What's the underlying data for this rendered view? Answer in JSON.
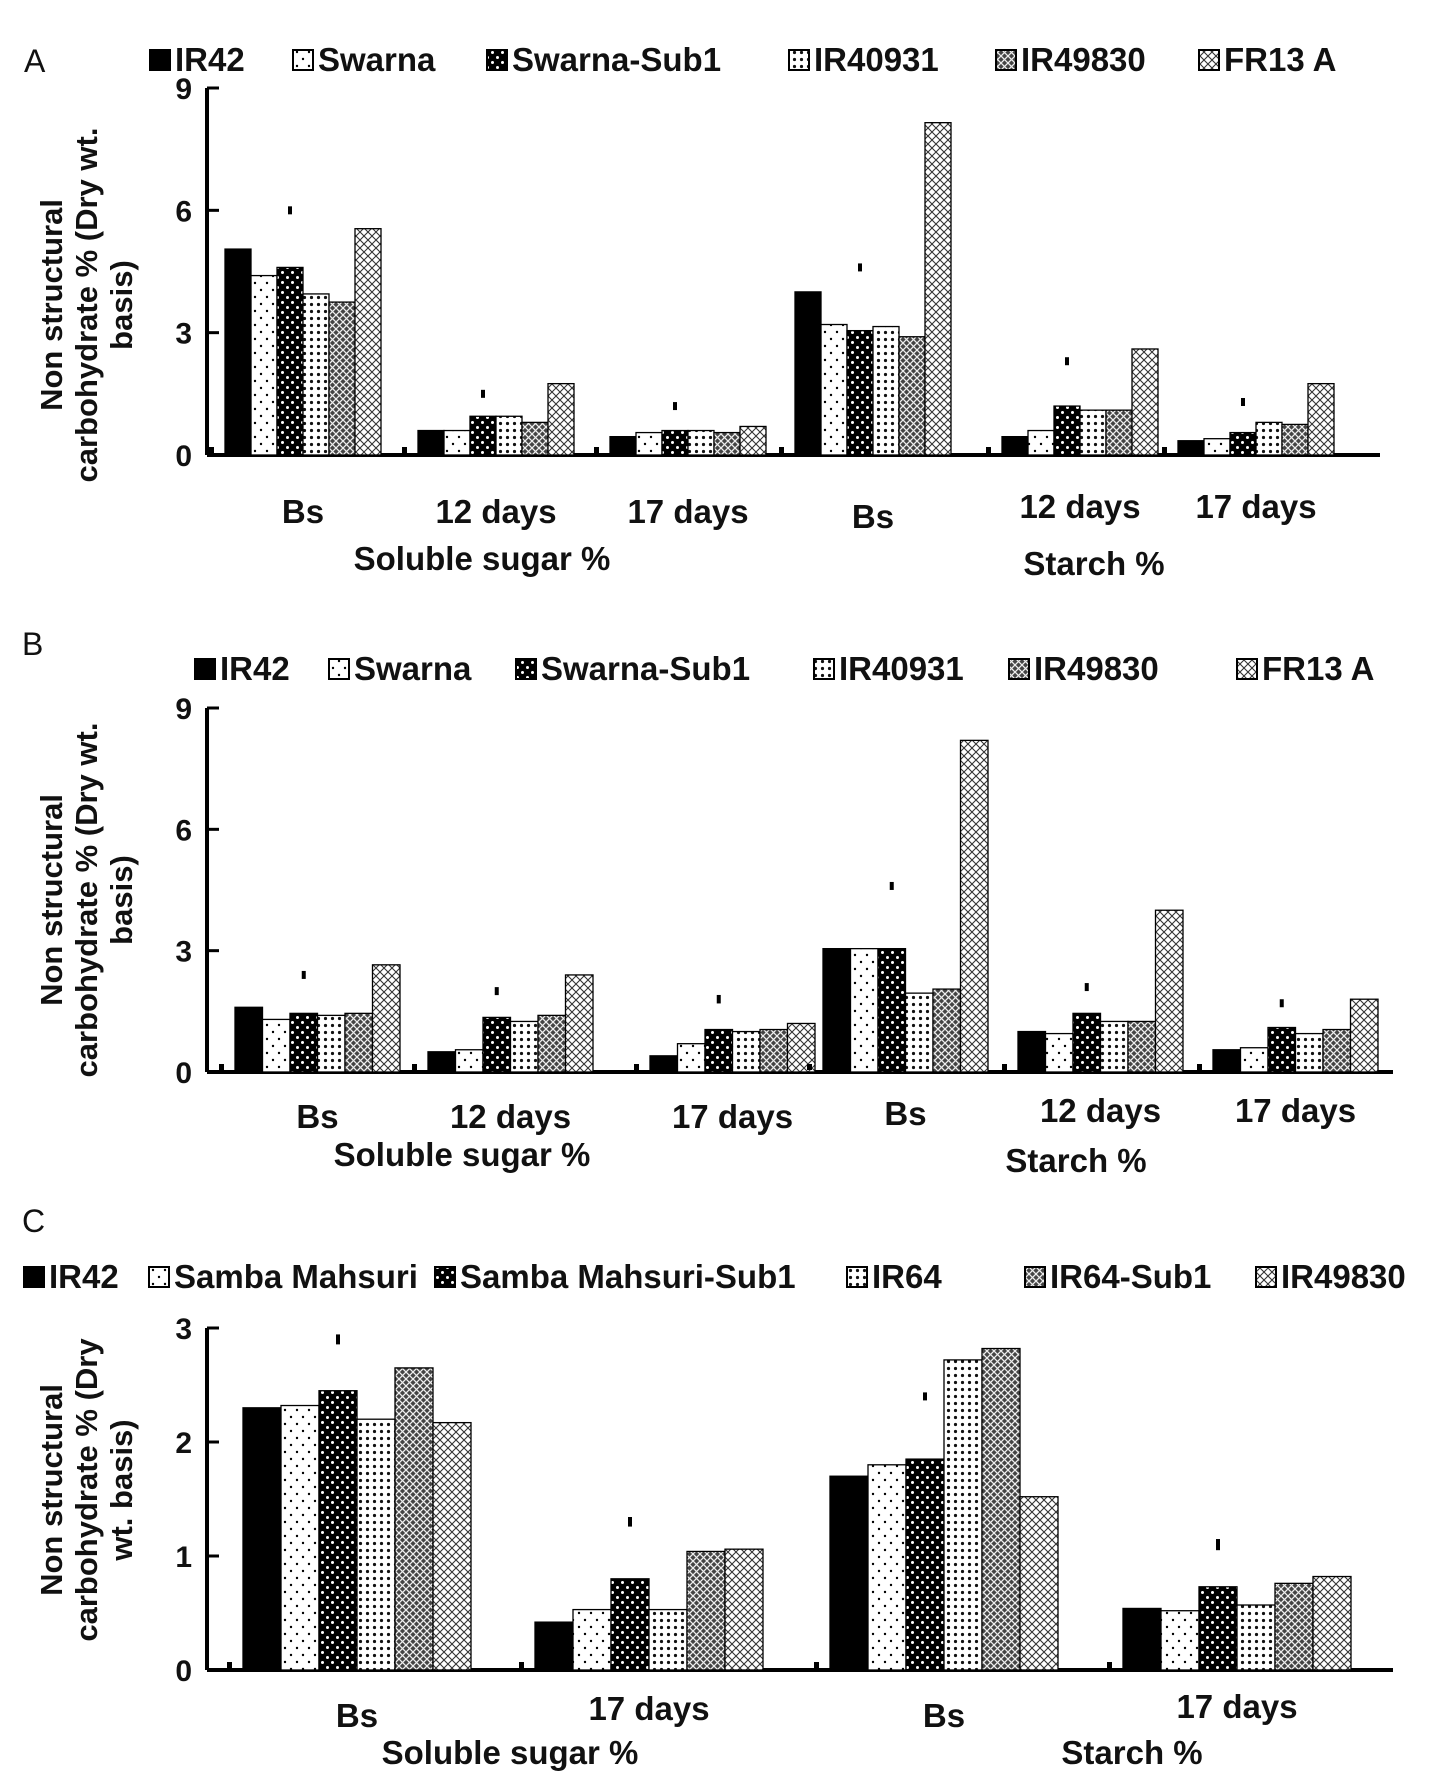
{
  "chart_data": [
    {
      "panel": "A",
      "type": "bar",
      "ylabel": [
        "Non structural",
        "carbohydrate % (Dry wt.",
        "basis)"
      ],
      "ylim": [
        0,
        9
      ],
      "yticks": [
        "0",
        "3",
        "6",
        "9"
      ],
      "legend": [
        "IR42",
        "Swarna",
        "Swarna-Sub1",
        "IR40931",
        "IR49830",
        "FR13 A"
      ],
      "sections": [
        {
          "label": "Soluble sugar %",
          "groups": [
            {
              "label": "Bs",
              "values": [
                5.05,
                4.4,
                4.6,
                3.95,
                3.75,
                5.55
              ],
              "lsd": 6.0
            },
            {
              "label": "12 days",
              "values": [
                0.6,
                0.6,
                0.95,
                0.95,
                0.8,
                1.75
              ],
              "lsd": 1.5
            },
            {
              "label": "17 days",
              "values": [
                0.45,
                0.55,
                0.6,
                0.6,
                0.55,
                0.7
              ],
              "lsd": 1.2
            }
          ]
        },
        {
          "label": "Starch %",
          "groups": [
            {
              "label": "Bs",
              "values": [
                4.0,
                3.2,
                3.05,
                3.15,
                2.9,
                8.15
              ],
              "lsd": 4.6
            },
            {
              "label": "12 days",
              "values": [
                0.45,
                0.6,
                1.2,
                1.1,
                1.1,
                2.6
              ],
              "lsd": 2.3
            },
            {
              "label": "17 days",
              "values": [
                0.35,
                0.4,
                0.55,
                0.8,
                0.75,
                1.75
              ],
              "lsd": 1.3
            }
          ]
        }
      ]
    },
    {
      "panel": "B",
      "type": "bar",
      "ylabel": [
        "Non structural",
        "carbohydrate % (Dry wt.",
        "basis)"
      ],
      "ylim": [
        0,
        9
      ],
      "yticks": [
        "0",
        "3",
        "6",
        "9"
      ],
      "legend": [
        "IR42",
        "Swarna",
        "Swarna-Sub1",
        "IR40931",
        "IR49830",
        "FR13 A"
      ],
      "sections": [
        {
          "label": "Soluble sugar %",
          "groups": [
            {
              "label": "Bs",
              "values": [
                1.6,
                1.3,
                1.45,
                1.4,
                1.45,
                2.65
              ],
              "lsd": 2.4
            },
            {
              "label": "12 days",
              "values": [
                0.5,
                0.55,
                1.35,
                1.25,
                1.4,
                2.4
              ],
              "lsd": 2.0
            },
            {
              "label": "17 days",
              "values": [
                0.4,
                0.7,
                1.05,
                1.0,
                1.05,
                1.2
              ],
              "lsd": 1.8
            }
          ]
        },
        {
          "label": "Starch %",
          "groups": [
            {
              "label": "Bs",
              "values": [
                3.05,
                3.05,
                3.05,
                1.95,
                2.05,
                8.2
              ],
              "lsd": 4.6
            },
            {
              "label": "12 days",
              "values": [
                1.0,
                0.95,
                1.45,
                1.25,
                1.25,
                4.0
              ],
              "lsd": 2.1
            },
            {
              "label": "17 days",
              "values": [
                0.55,
                0.6,
                1.1,
                0.95,
                1.05,
                1.8
              ],
              "lsd": 1.7
            }
          ]
        }
      ]
    },
    {
      "panel": "C",
      "type": "bar",
      "ylabel": [
        "Non structural",
        "carbohydrate % (Dry",
        "wt. basis)"
      ],
      "ylim": [
        0,
        3
      ],
      "yticks": [
        "0",
        "1",
        "2",
        "3"
      ],
      "legend": [
        "IR42",
        "Samba Mahsuri",
        "Samba Mahsuri-Sub1",
        "IR64",
        "IR64-Sub1",
        "IR49830"
      ],
      "sections": [
        {
          "label": "Soluble sugar %",
          "groups": [
            {
              "label": "Bs",
              "values": [
                2.3,
                2.32,
                2.45,
                2.2,
                2.65,
                2.17
              ],
              "lsd": 2.9
            },
            {
              "label": "17 days",
              "values": [
                0.42,
                0.53,
                0.8,
                0.53,
                1.04,
                1.06
              ],
              "lsd": 1.3
            }
          ]
        },
        {
          "label": "Starch %",
          "groups": [
            {
              "label": "Bs",
              "values": [
                1.7,
                1.8,
                1.85,
                2.72,
                2.82,
                1.52
              ],
              "lsd": 2.4
            },
            {
              "label": "17 days",
              "values": [
                0.54,
                0.52,
                0.73,
                0.57,
                0.76,
                0.82
              ],
              "lsd": 1.1
            }
          ]
        }
      ]
    }
  ]
}
